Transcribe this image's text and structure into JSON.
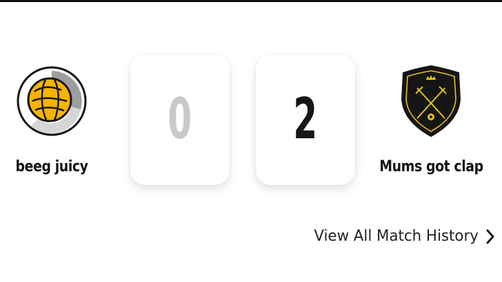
{
  "match": {
    "home_team": {
      "name": "beeg juicy",
      "score": "0",
      "crest_icon": "football-crest-icon",
      "crest_colors": {
        "ball": "#f5b400",
        "ring": "#9e9e9e",
        "outline": "#151515"
      }
    },
    "away_team": {
      "name": "Mums got clap",
      "score": "2",
      "crest_icon": "crossed-swords-shield-icon",
      "crest_text": "19 94",
      "crest_colors": {
        "shield": "#151515",
        "emblem": "#e6c21a"
      }
    },
    "score_colors": {
      "home": "#c9c9c9",
      "away": "#161616"
    }
  },
  "history_link": {
    "label": "View All Match History",
    "icon": "chevron-right-icon"
  }
}
